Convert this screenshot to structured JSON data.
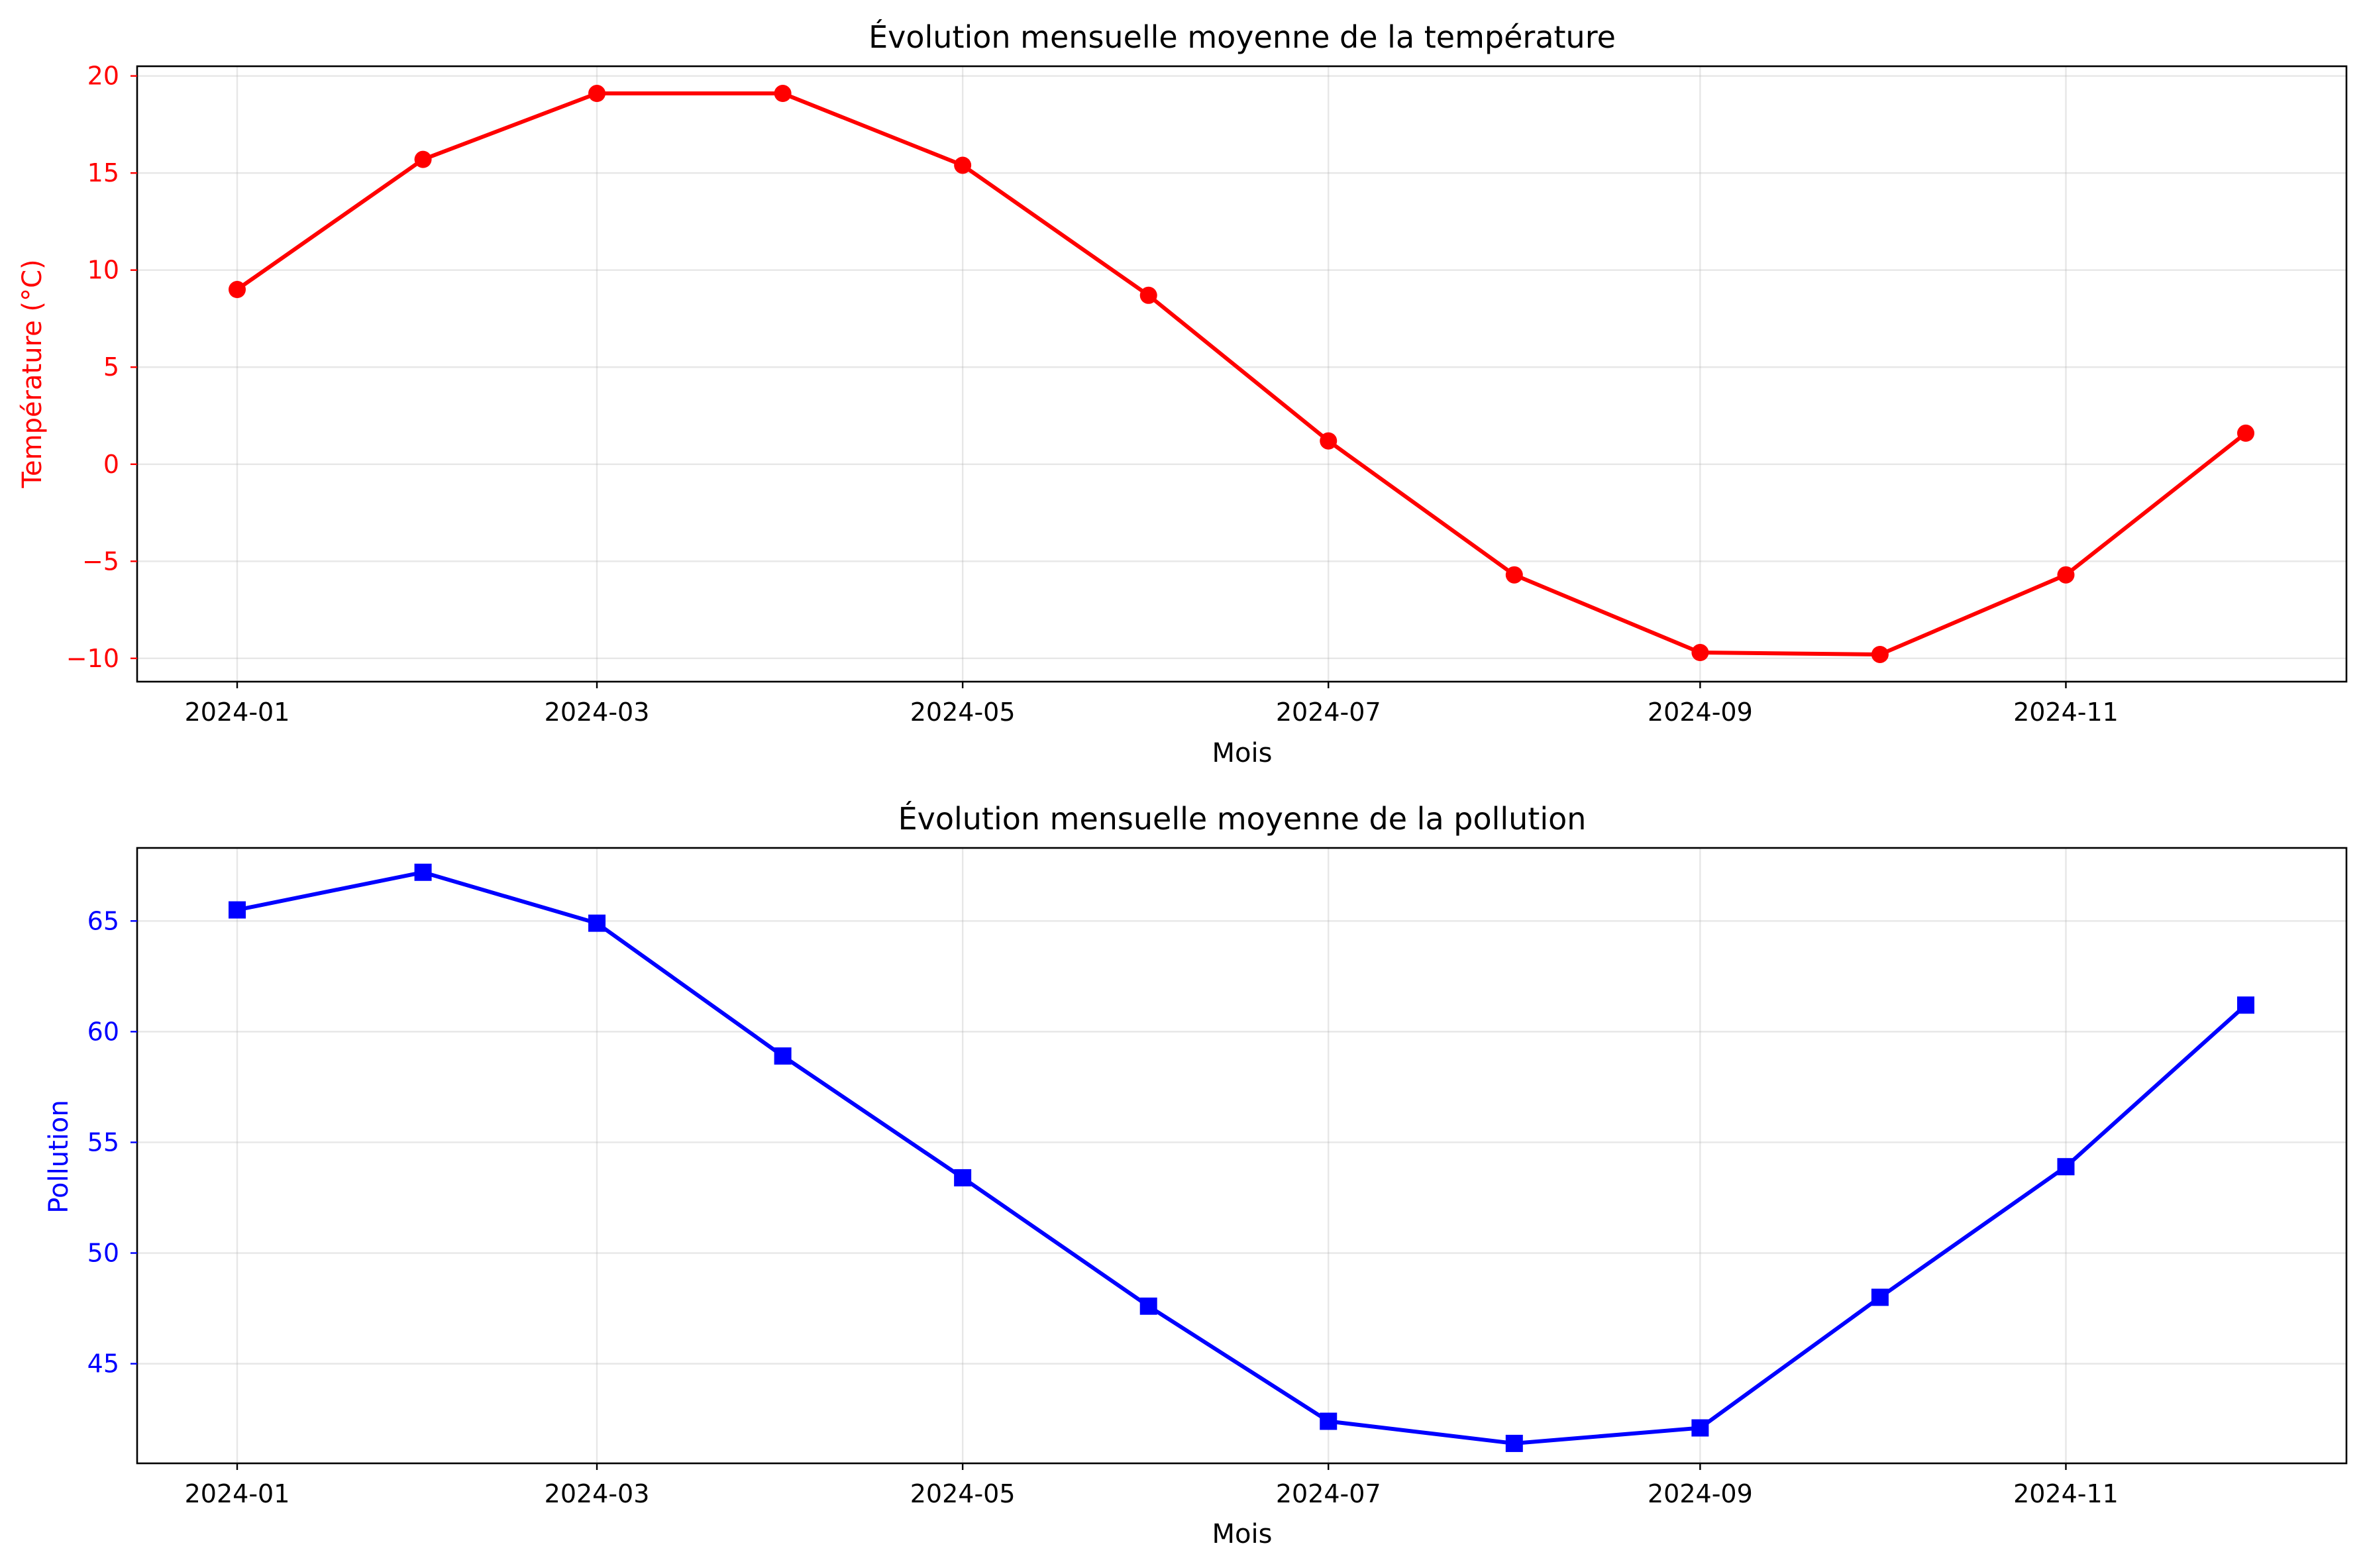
{
  "chart_data": [
    {
      "type": "line",
      "title": "Évolution mensuelle moyenne de la température",
      "xlabel": "Mois",
      "ylabel": "Température (°C)",
      "color": "#ff0000",
      "marker": "circle",
      "x": [
        "2024-01",
        "2024-02",
        "2024-03",
        "2024-04",
        "2024-05",
        "2024-06",
        "2024-07",
        "2024-08",
        "2024-09",
        "2024-10",
        "2024-11",
        "2024-12"
      ],
      "xticks": [
        "2024-01",
        "2024-03",
        "2024-05",
        "2024-07",
        "2024-09",
        "2024-11"
      ],
      "yticks": [
        -10,
        -5,
        0,
        5,
        10,
        15,
        20
      ],
      "ylim": [
        -11.2,
        20.5
      ],
      "values": [
        9.0,
        15.7,
        19.1,
        19.1,
        15.4,
        8.7,
        1.2,
        -5.7,
        -9.7,
        -9.8,
        -5.7,
        1.6
      ],
      "grid": true
    },
    {
      "type": "line",
      "title": "Évolution mensuelle moyenne de la pollution",
      "xlabel": "Mois",
      "ylabel": "Pollution",
      "color": "#0000ff",
      "marker": "square",
      "x": [
        "2024-01",
        "2024-02",
        "2024-03",
        "2024-04",
        "2024-05",
        "2024-06",
        "2024-07",
        "2024-08",
        "2024-09",
        "2024-10",
        "2024-11",
        "2024-12"
      ],
      "xticks": [
        "2024-01",
        "2024-03",
        "2024-05",
        "2024-07",
        "2024-09",
        "2024-11"
      ],
      "yticks": [
        45,
        50,
        55,
        60,
        65
      ],
      "ylim": [
        40.5,
        68.3
      ],
      "values": [
        65.5,
        67.2,
        64.9,
        58.9,
        53.4,
        47.6,
        42.4,
        41.4,
        42.1,
        48.0,
        53.9,
        61.2
      ],
      "grid": true
    }
  ]
}
